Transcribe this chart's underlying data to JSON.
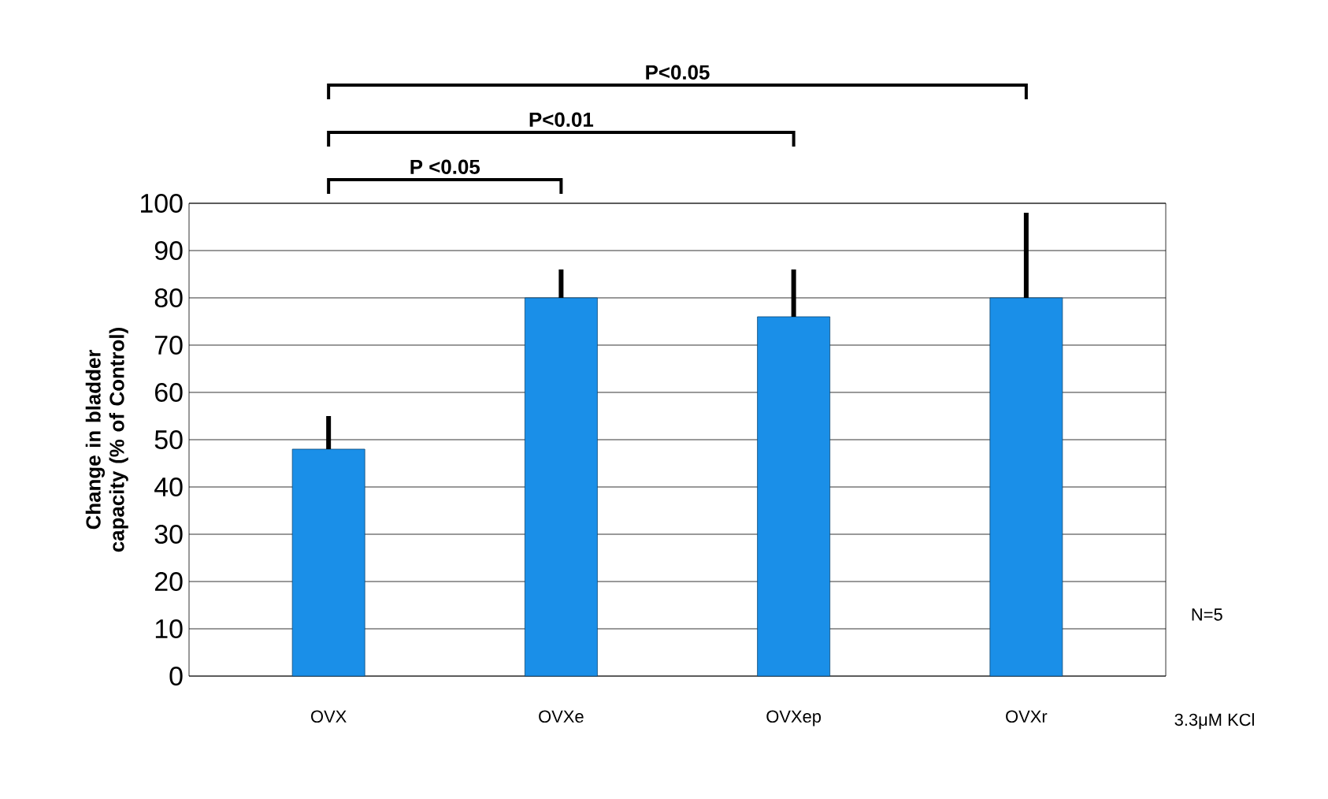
{
  "chart_data": {
    "type": "bar",
    "ylabel": "Change in bladder capacity (% of Control)",
    "xlabel": "3.3μM KCl",
    "categories": [
      "OVX",
      "OVXe",
      "OVXep",
      "OVXr"
    ],
    "values": [
      48,
      80,
      76,
      80
    ],
    "errors": [
      7,
      6,
      10,
      18
    ],
    "color": "#1a8fe8",
    "ylim": [
      0,
      100
    ],
    "yticks": [
      0,
      10,
      20,
      30,
      40,
      50,
      60,
      70,
      80,
      90,
      100
    ],
    "grid": "y",
    "annotations": [
      "P <0.05",
      "P<0.01",
      "P<0.05",
      "N=5"
    ]
  }
}
